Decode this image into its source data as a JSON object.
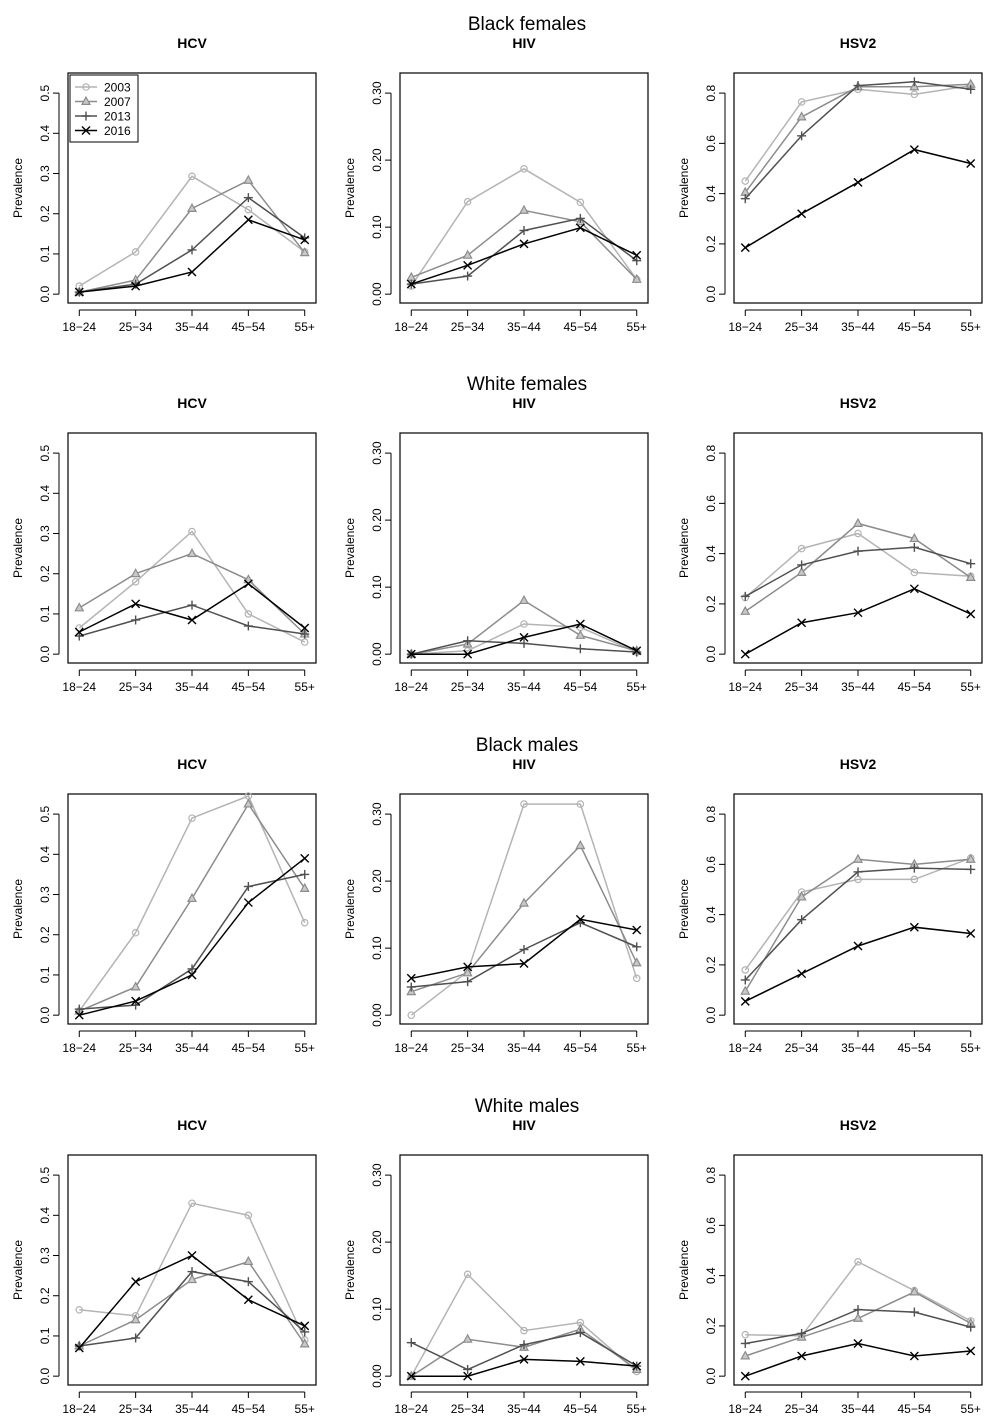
{
  "chart_data": [
    {
      "group": "Black females",
      "panels": [
        {
          "type": "line",
          "title": "HCV",
          "ylabel": "Prevalence",
          "categories": [
            "18−24",
            "25−34",
            "35−44",
            "45−54",
            "55+"
          ],
          "ylim": [
            0,
            0.55
          ],
          "yticks": [
            "0.0",
            "0.1",
            "0.2",
            "0.3",
            "0.4",
            "0.5"
          ],
          "legend": "top-left",
          "series": [
            {
              "name": "2003",
              "values": [
                0.02,
                0.105,
                0.293,
                0.21,
                0.105
              ]
            },
            {
              "name": "2007",
              "values": [
                0.005,
                0.035,
                0.213,
                0.283,
                0.103
              ]
            },
            {
              "name": "2013",
              "values": [
                0.005,
                0.025,
                0.11,
                0.24,
                0.14
              ]
            },
            {
              "name": "2016",
              "values": [
                0.005,
                0.02,
                0.055,
                0.185,
                0.135
              ]
            }
          ]
        },
        {
          "type": "line",
          "title": "HIV",
          "ylabel": "Prevalence",
          "categories": [
            "18−24",
            "25−34",
            "35−44",
            "45−54",
            "55+"
          ],
          "ylim": [
            0,
            0.33
          ],
          "yticks": [
            "0.00",
            "0.10",
            "0.20",
            "0.30"
          ],
          "series": [
            {
              "name": "2003",
              "values": [
                0.012,
                0.138,
                0.187,
                0.137,
                0.022
              ]
            },
            {
              "name": "2007",
              "values": [
                0.025,
                0.058,
                0.125,
                0.108,
                0.022
              ]
            },
            {
              "name": "2013",
              "values": [
                0.015,
                0.027,
                0.095,
                0.113,
                0.05
              ]
            },
            {
              "name": "2016",
              "values": [
                0.015,
                0.043,
                0.075,
                0.099,
                0.058
              ]
            }
          ]
        },
        {
          "type": "line",
          "title": "HSV2",
          "ylabel": "Prevalence",
          "categories": [
            "18−24",
            "25−34",
            "35−44",
            "45−54",
            "55+"
          ],
          "ylim": [
            0,
            0.88
          ],
          "yticks": [
            "0.0",
            "0.2",
            "0.4",
            "0.6",
            "0.8"
          ],
          "series": [
            {
              "name": "2003",
              "values": [
                0.45,
                0.765,
                0.815,
                0.795,
                0.83
              ]
            },
            {
              "name": "2007",
              "values": [
                0.405,
                0.705,
                0.825,
                0.825,
                0.835
              ]
            },
            {
              "name": "2013",
              "values": [
                0.38,
                0.63,
                0.83,
                0.845,
                0.815
              ]
            },
            {
              "name": "2016",
              "values": [
                0.185,
                0.32,
                0.445,
                0.575,
                0.52
              ]
            }
          ]
        }
      ]
    },
    {
      "group": "White females",
      "panels": [
        {
          "type": "line",
          "title": "HCV",
          "ylabel": "Prevalence",
          "categories": [
            "18−24",
            "25−34",
            "35−44",
            "45−54",
            "55+"
          ],
          "ylim": [
            0,
            0.55
          ],
          "yticks": [
            "0.0",
            "0.1",
            "0.2",
            "0.3",
            "0.4",
            "0.5"
          ],
          "series": [
            {
              "name": "2003",
              "values": [
                0.065,
                0.18,
                0.305,
                0.1,
                0.03
              ]
            },
            {
              "name": "2007",
              "values": [
                0.115,
                0.2,
                0.25,
                0.185,
                0.05
              ]
            },
            {
              "name": "2013",
              "values": [
                0.045,
                0.085,
                0.122,
                0.07,
                0.05
              ]
            },
            {
              "name": "2016",
              "values": [
                0.055,
                0.125,
                0.085,
                0.175,
                0.065
              ]
            }
          ]
        },
        {
          "type": "line",
          "title": "HIV",
          "ylabel": "Prevalence",
          "categories": [
            "18−24",
            "25−34",
            "35−44",
            "45−54",
            "55+"
          ],
          "ylim": [
            0,
            0.33
          ],
          "yticks": [
            "0.00",
            "0.10",
            "0.20",
            "0.30"
          ],
          "series": [
            {
              "name": "2003",
              "values": [
                0.0,
                0.005,
                0.045,
                0.04,
                0.003
              ]
            },
            {
              "name": "2007",
              "values": [
                0.0,
                0.015,
                0.08,
                0.028,
                0.005
              ]
            },
            {
              "name": "2013",
              "values": [
                0.0,
                0.02,
                0.016,
                0.008,
                0.003
              ]
            },
            {
              "name": "2016",
              "values": [
                0.0,
                0.0,
                0.025,
                0.045,
                0.005
              ]
            }
          ]
        },
        {
          "type": "line",
          "title": "HSV2",
          "ylabel": "Prevalence",
          "categories": [
            "18−24",
            "25−34",
            "35−44",
            "45−54",
            "55+"
          ],
          "ylim": [
            0,
            0.88
          ],
          "yticks": [
            "0.0",
            "0.2",
            "0.4",
            "0.6",
            "0.8"
          ],
          "series": [
            {
              "name": "2003",
              "values": [
                0.225,
                0.42,
                0.48,
                0.325,
                0.31
              ]
            },
            {
              "name": "2007",
              "values": [
                0.17,
                0.325,
                0.52,
                0.46,
                0.305
              ]
            },
            {
              "name": "2013",
              "values": [
                0.23,
                0.355,
                0.41,
                0.425,
                0.36
              ]
            },
            {
              "name": "2016",
              "values": [
                0.0,
                0.125,
                0.165,
                0.26,
                0.16
              ]
            }
          ]
        }
      ]
    },
    {
      "group": "Black males",
      "panels": [
        {
          "type": "line",
          "title": "HCV",
          "ylabel": "Prevalence",
          "categories": [
            "18−24",
            "25−34",
            "35−44",
            "45−54",
            "55+"
          ],
          "ylim": [
            0,
            0.55
          ],
          "yticks": [
            "0.0",
            "0.1",
            "0.2",
            "0.3",
            "0.4",
            "0.5"
          ],
          "series": [
            {
              "name": "2003",
              "values": [
                0.01,
                0.205,
                0.49,
                0.545,
                0.23
              ]
            },
            {
              "name": "2007",
              "values": [
                0.01,
                0.07,
                0.29,
                0.525,
                0.315
              ]
            },
            {
              "name": "2013",
              "values": [
                0.015,
                0.025,
                0.115,
                0.32,
                0.35
              ]
            },
            {
              "name": "2016",
              "values": [
                0.0,
                0.035,
                0.1,
                0.28,
                0.39
              ]
            }
          ]
        },
        {
          "type": "line",
          "title": "HIV",
          "ylabel": "Prevalence",
          "categories": [
            "18−24",
            "25−34",
            "35−44",
            "45−54",
            "55+"
          ],
          "ylim": [
            0,
            0.33
          ],
          "yticks": [
            "0.00",
            "0.10",
            "0.20",
            "0.30"
          ],
          "series": [
            {
              "name": "2003",
              "values": [
                0.0,
                0.065,
                0.315,
                0.315,
                0.055
              ]
            },
            {
              "name": "2007",
              "values": [
                0.035,
                0.063,
                0.167,
                0.253,
                0.078
              ]
            },
            {
              "name": "2013",
              "values": [
                0.042,
                0.05,
                0.098,
                0.138,
                0.102
              ]
            },
            {
              "name": "2016",
              "values": [
                0.055,
                0.072,
                0.077,
                0.143,
                0.127
              ]
            }
          ]
        },
        {
          "type": "line",
          "title": "HSV2",
          "ylabel": "Prevalence",
          "categories": [
            "18−24",
            "25−34",
            "35−44",
            "45−54",
            "55+"
          ],
          "ylim": [
            0,
            0.88
          ],
          "yticks": [
            "0.0",
            "0.2",
            "0.4",
            "0.6",
            "0.8"
          ],
          "series": [
            {
              "name": "2003",
              "values": [
                0.18,
                0.49,
                0.54,
                0.54,
                0.625
              ]
            },
            {
              "name": "2007",
              "values": [
                0.095,
                0.47,
                0.62,
                0.6,
                0.62
              ]
            },
            {
              "name": "2013",
              "values": [
                0.14,
                0.38,
                0.57,
                0.585,
                0.58
              ]
            },
            {
              "name": "2016",
              "values": [
                0.055,
                0.165,
                0.275,
                0.35,
                0.325
              ]
            }
          ]
        }
      ]
    },
    {
      "group": "White males",
      "panels": [
        {
          "type": "line",
          "title": "HCV",
          "ylabel": "Prevalence",
          "categories": [
            "18−24",
            "25−34",
            "35−44",
            "45−54",
            "55+"
          ],
          "ylim": [
            0,
            0.55
          ],
          "yticks": [
            "0.0",
            "0.1",
            "0.2",
            "0.3",
            "0.4",
            "0.5"
          ],
          "series": [
            {
              "name": "2003",
              "values": [
                0.165,
                0.15,
                0.43,
                0.4,
                0.09
              ]
            },
            {
              "name": "2007",
              "values": [
                0.075,
                0.14,
                0.24,
                0.285,
                0.08
              ]
            },
            {
              "name": "2013",
              "values": [
                0.075,
                0.095,
                0.26,
                0.235,
                0.11
              ]
            },
            {
              "name": "2016",
              "values": [
                0.07,
                0.235,
                0.3,
                0.19,
                0.125
              ]
            }
          ]
        },
        {
          "type": "line",
          "title": "HIV",
          "ylabel": "Prevalence",
          "categories": [
            "18−24",
            "25−34",
            "35−44",
            "45−54",
            "55+"
          ],
          "ylim": [
            0,
            0.33
          ],
          "yticks": [
            "0.00",
            "0.10",
            "0.20",
            "0.30"
          ],
          "series": [
            {
              "name": "2003",
              "values": [
                0.0,
                0.152,
                0.068,
                0.08,
                0.007
              ]
            },
            {
              "name": "2007",
              "values": [
                0.0,
                0.055,
                0.043,
                0.07,
                0.01
              ]
            },
            {
              "name": "2013",
              "values": [
                0.05,
                0.01,
                0.047,
                0.065,
                0.015
              ]
            },
            {
              "name": "2016",
              "values": [
                0.0,
                0.0,
                0.025,
                0.022,
                0.015
              ]
            }
          ]
        },
        {
          "type": "line",
          "title": "HSV2",
          "ylabel": "Prevalence",
          "categories": [
            "18−24",
            "25−34",
            "35−44",
            "45−54",
            "55+"
          ],
          "ylim": [
            0,
            0.88
          ],
          "yticks": [
            "0.0",
            "0.2",
            "0.4",
            "0.6",
            "0.8"
          ],
          "series": [
            {
              "name": "2003",
              "values": [
                0.165,
                0.16,
                0.455,
                0.34,
                0.22
              ]
            },
            {
              "name": "2007",
              "values": [
                0.08,
                0.155,
                0.23,
                0.335,
                0.21
              ]
            },
            {
              "name": "2013",
              "values": [
                0.13,
                0.17,
                0.265,
                0.255,
                0.195
              ]
            },
            {
              "name": "2016",
              "values": [
                0.0,
                0.08,
                0.13,
                0.08,
                0.1
              ]
            }
          ]
        }
      ]
    }
  ],
  "series_styles": [
    {
      "name": "2003",
      "color": "#b4b4b4",
      "marker": "circle"
    },
    {
      "name": "2007",
      "color": "#8c8c8c",
      "marker": "triangle"
    },
    {
      "name": "2013",
      "color": "#505050",
      "marker": "plus"
    },
    {
      "name": "2016",
      "color": "#000000",
      "marker": "cross"
    }
  ]
}
